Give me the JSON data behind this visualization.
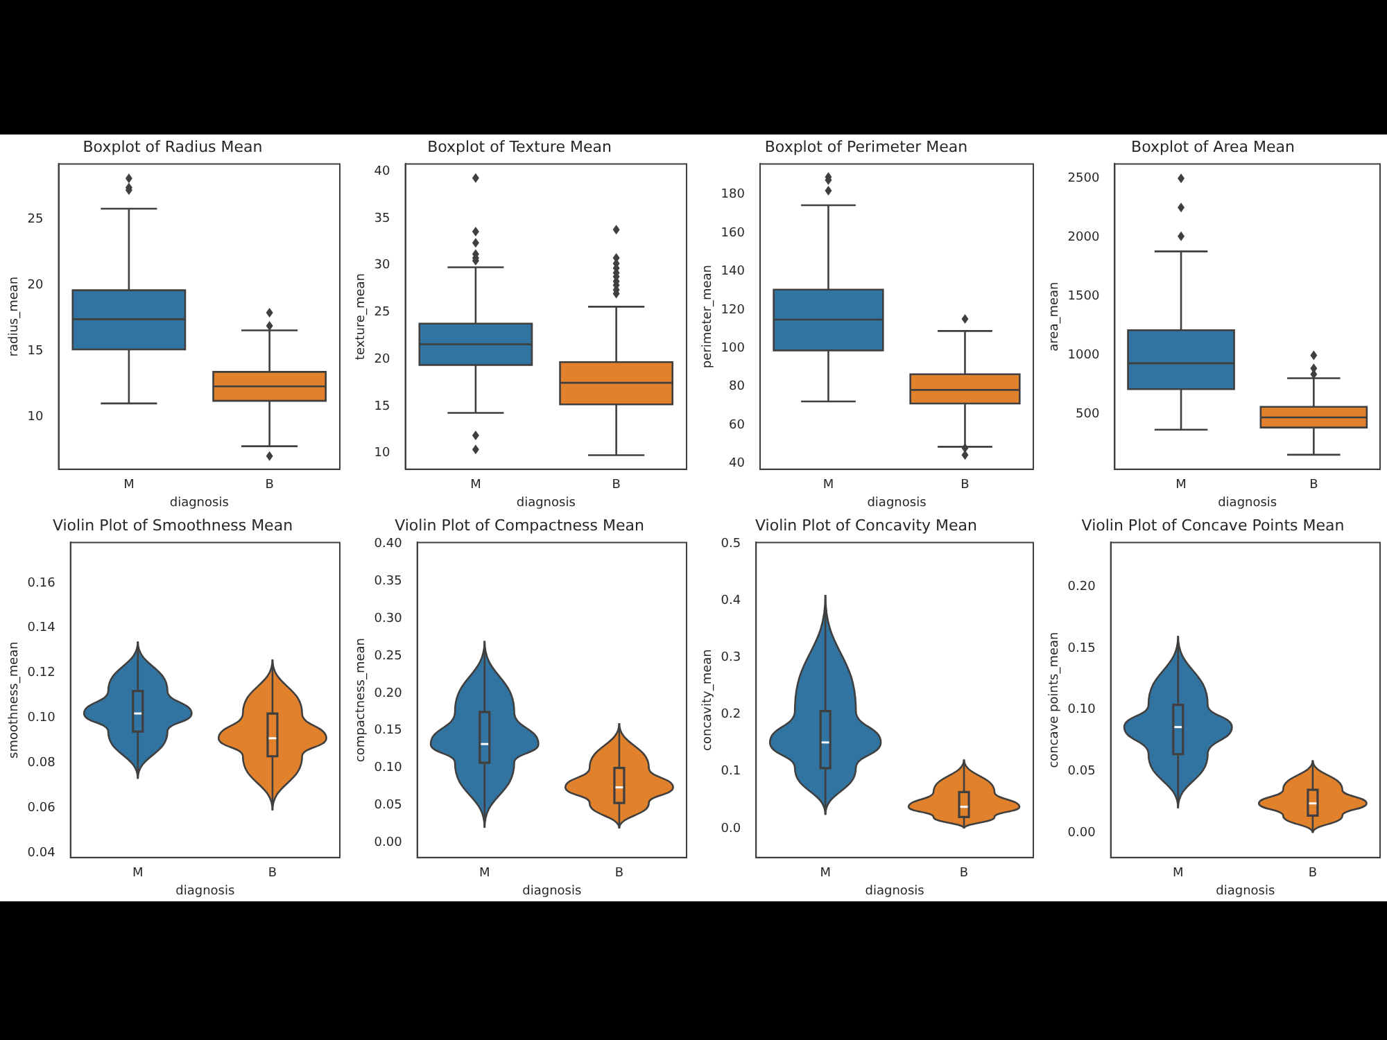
{
  "chart_data": [
    {
      "type": "box",
      "title": "Boxplot of Radius Mean",
      "xlabel": "diagnosis",
      "ylabel": "radius_mean",
      "categories": [
        "M",
        "B"
      ],
      "colors": [
        "#3274a1",
        "#e1812c"
      ],
      "ylim": [
        6.0,
        29.2
      ],
      "yticks": [
        10,
        15,
        20,
        25
      ],
      "boxes": [
        {
          "low": 11.0,
          "q1": 15.1,
          "median": 17.4,
          "q3": 19.6,
          "high": 25.8,
          "outliers": [
            27.2,
            27.4,
            28.1
          ]
        },
        {
          "low": 7.75,
          "q1": 11.2,
          "median": 12.3,
          "q3": 13.4,
          "high": 16.55,
          "outliers": [
            16.9,
            17.9,
            7.0
          ]
        }
      ]
    },
    {
      "type": "box",
      "title": "Boxplot of Texture Mean",
      "xlabel": "diagnosis",
      "ylabel": "texture_mean",
      "categories": [
        "M",
        "B"
      ],
      "colors": [
        "#3274a1",
        "#e1812c"
      ],
      "ylim": [
        8.3,
        40.8
      ],
      "yticks": [
        10,
        15,
        20,
        25,
        30,
        35,
        40
      ],
      "boxes": [
        {
          "low": 14.3,
          "q1": 19.4,
          "median": 21.6,
          "q3": 23.8,
          "high": 29.8,
          "outliers": [
            39.3,
            33.6,
            32.4,
            31.2,
            30.8,
            30.5,
            11.9,
            10.4
          ]
        },
        {
          "low": 9.8,
          "q1": 15.2,
          "median": 17.5,
          "q3": 19.7,
          "high": 25.6,
          "outliers": [
            33.8,
            30.8,
            30.2,
            29.7,
            29.2,
            28.8,
            28.3,
            27.9,
            27.4,
            27.0
          ]
        }
      ]
    },
    {
      "type": "box",
      "title": "Boxplot of Perimeter Mean",
      "xlabel": "diagnosis",
      "ylabel": "perimeter_mean",
      "categories": [
        "M",
        "B"
      ],
      "colors": [
        "#3274a1",
        "#e1812c"
      ],
      "ylim": [
        37,
        196
      ],
      "yticks": [
        40,
        60,
        80,
        100,
        120,
        140,
        160,
        180
      ],
      "boxes": [
        {
          "low": 72.3,
          "q1": 98.9,
          "median": 114.9,
          "q3": 130.5,
          "high": 174.5,
          "outliers": [
            182.1,
            187.6,
            189.2
          ]
        },
        {
          "low": 48.7,
          "q1": 71.2,
          "median": 78.3,
          "q3": 86.5,
          "high": 109,
          "outliers": [
            115.3,
            48.0,
            44.4
          ]
        }
      ]
    },
    {
      "type": "box",
      "title": "Boxplot of Area Mean",
      "xlabel": "diagnosis",
      "ylabel": "area_mean",
      "categories": [
        "M",
        "B"
      ],
      "colors": [
        "#3274a1",
        "#e1812c"
      ],
      "ylim": [
        34,
        2623
      ],
      "yticks": [
        500,
        1000,
        1500,
        2000,
        2500
      ],
      "boxes": [
        {
          "low": 369,
          "q1": 713,
          "median": 933,
          "q3": 1213,
          "high": 1881,
          "outliers": [
            2010,
            2254,
            2500
          ]
        },
        {
          "low": 157,
          "q1": 388,
          "median": 474,
          "q3": 563,
          "high": 806,
          "outliers": [
            840,
            890,
            1000
          ]
        }
      ]
    },
    {
      "type": "box",
      "title": "Violin Plot of Smoothness Mean",
      "xlabel": "diagnosis",
      "ylabel": "smoothness_mean",
      "categories": [
        "M",
        "B"
      ],
      "colors": [
        "#3274a1",
        "#e1812c"
      ],
      "ylim": [
        0.038,
        0.178
      ],
      "yticks": [
        0.04,
        0.06,
        0.08,
        {
          "value": 0.1,
          "label": "0.10"
        },
        0.12,
        0.14,
        0.16
      ],
      "boxes": [
        {
          "low": 0.073,
          "q1": 0.094,
          "median": 0.102,
          "q3": 0.112,
          "high": 0.134
        },
        {
          "low": 0.059,
          "q1": 0.083,
          "median": 0.091,
          "q3": 0.102,
          "high": 0.126
        }
      ]
    },
    {
      "type": "box",
      "title": "Violin Plot of Compactness Mean",
      "xlabel": "diagnosis",
      "ylabel": "compactness_mean",
      "categories": [
        "M",
        "B"
      ],
      "colors": [
        "#3274a1",
        "#e1812c"
      ],
      "ylim": [
        -0.02,
        0.402
      ],
      "yticks": [
        {
          "value": 0,
          "label": "0.00"
        },
        0.05,
        {
          "value": 0.1,
          "label": "0.10"
        },
        0.15,
        {
          "value": 0.2,
          "label": "0.20"
        },
        0.25,
        {
          "value": 0.3,
          "label": "0.30"
        },
        0.35,
        {
          "value": 0.4,
          "label": "0.40"
        }
      ],
      "boxes": [
        {
          "low": 0.02,
          "q1": 0.107,
          "median": 0.132,
          "q3": 0.175,
          "high": 0.27
        },
        {
          "low": 0.019,
          "q1": 0.053,
          "median": 0.074,
          "q3": 0.1,
          "high": 0.16
        }
      ]
    },
    {
      "type": "box",
      "title": "Violin Plot of Concavity Mean",
      "xlabel": "diagnosis",
      "ylabel": "concavity_mean",
      "categories": [
        "M",
        "B"
      ],
      "colors": [
        "#3274a1",
        "#e1812c"
      ],
      "ylim": [
        -0.051,
        0.502
      ],
      "yticks": [
        {
          "value": 0,
          "label": "0.0"
        },
        0.1,
        0.2,
        0.3,
        0.4,
        0.5
      ],
      "boxes": [
        {
          "low": 0.024,
          "q1": 0.106,
          "median": 0.151,
          "q3": 0.206,
          "high": 0.41
        },
        {
          "low": 0.0,
          "q1": 0.02,
          "median": 0.038,
          "q3": 0.064,
          "high": 0.121
        }
      ]
    },
    {
      "type": "box",
      "title": "Violin Plot of Concave Points Mean",
      "xlabel": "diagnosis",
      "ylabel": "concave points_mean",
      "categories": [
        "M",
        "B"
      ],
      "colors": [
        "#3274a1",
        "#e1812c"
      ],
      "ylim": [
        -0.02,
        0.236
      ],
      "yticks": [
        {
          "value": 0,
          "label": "0.00"
        },
        0.05,
        {
          "value": 0.1,
          "label": "0.10"
        },
        0.15,
        {
          "value": 0.2,
          "label": "0.20"
        }
      ],
      "boxes": [
        {
          "low": 0.02,
          "q1": 0.064,
          "median": 0.086,
          "q3": 0.104,
          "high": 0.16
        },
        {
          "low": 0.0,
          "q1": 0.014,
          "median": 0.024,
          "q3": 0.035,
          "high": 0.059
        }
      ]
    }
  ]
}
